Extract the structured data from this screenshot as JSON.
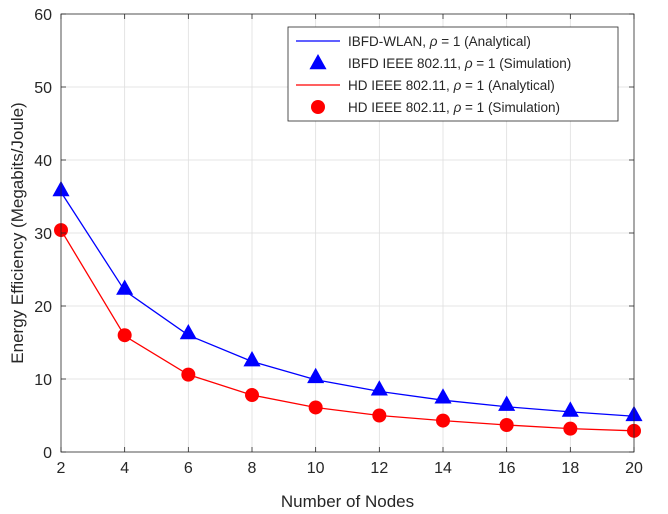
{
  "chart_data": {
    "type": "line",
    "title": "",
    "xlabel": "Number of Nodes",
    "ylabel": "Energy Efficiency (Megabits/Joule)",
    "xlim": [
      2,
      20
    ],
    "ylim": [
      0,
      60
    ],
    "xticks": [
      2,
      4,
      6,
      8,
      10,
      12,
      14,
      16,
      18,
      20
    ],
    "yticks": [
      0,
      10,
      20,
      30,
      40,
      50,
      60
    ],
    "grid": true,
    "legend_position": "top-right",
    "x": [
      2,
      4,
      6,
      8,
      10,
      12,
      14,
      16,
      18,
      20
    ],
    "series": [
      {
        "name": "IBFD-WLAN, ρ = 1 (Analytical)",
        "legend_prefix": "IBFD-WLAN, ",
        "legend_suffix": " = 1 (Analytical)",
        "style": "line",
        "color": "#0000ff",
        "values": [
          35.6,
          22.1,
          16.0,
          12.4,
          9.9,
          8.3,
          7.1,
          6.2,
          5.5,
          4.9
        ]
      },
      {
        "name": "IBFD IEEE 802.11, ρ = 1 (Simulation)",
        "legend_prefix": "IBFD IEEE 802.11, ",
        "legend_suffix": " = 1 (Simulation)",
        "style": "marker",
        "marker": "triangle",
        "color": "#0000ff",
        "values": [
          35.9,
          22.4,
          16.3,
          12.6,
          10.3,
          8.6,
          7.5,
          6.5,
          5.7,
          5.1
        ]
      },
      {
        "name": "HD IEEE 802.11, ρ = 1 (Analytical)",
        "legend_prefix": "HD IEEE 802.11, ",
        "legend_suffix": " = 1 (Analytical)",
        "style": "line",
        "color": "#ff0000",
        "values": [
          30.4,
          15.9,
          10.6,
          7.8,
          6.1,
          5.0,
          4.3,
          3.7,
          3.2,
          2.9
        ]
      },
      {
        "name": "HD IEEE 802.11, ρ = 1 (Simulation)",
        "legend_prefix": "HD IEEE 802.11, ",
        "legend_suffix": " = 1 (Simulation)",
        "style": "marker",
        "marker": "circle",
        "color": "#ff0000",
        "values": [
          30.4,
          16.0,
          10.6,
          7.8,
          6.1,
          5.0,
          4.3,
          3.7,
          3.2,
          2.9
        ]
      }
    ],
    "legend_symbol": "ρ"
  }
}
